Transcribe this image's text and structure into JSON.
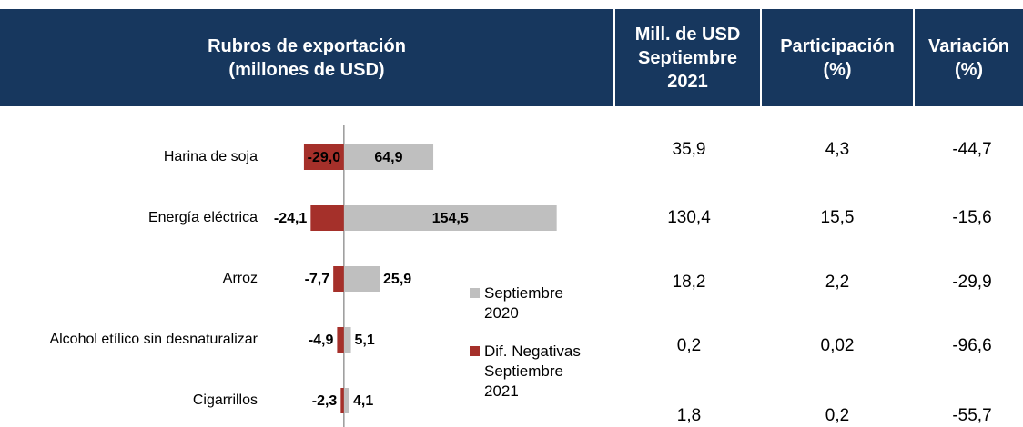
{
  "chart_data": {
    "type": "bar",
    "orientation": "horizontal",
    "title": [
      "Rubros de exportación",
      "(millones de USD)"
    ],
    "categories": [
      "Harina de soja",
      "Energía eléctrica",
      "Arroz",
      "Alcohol etílico sin desnaturalizar",
      "Cigarrillos"
    ],
    "series": [
      {
        "name": "Septiembre 2020",
        "color": "#bfbfbf",
        "values": [
          64.9,
          154.5,
          25.9,
          5.1,
          4.1
        ],
        "value_labels": [
          "64,9",
          "154,5",
          "25,9",
          "5,1",
          "4,1"
        ]
      },
      {
        "name": "Dif. Negativas Septiembre 2021",
        "color": "#a5302a",
        "values": [
          -29.0,
          -24.1,
          -7.7,
          -4.9,
          -2.3
        ],
        "value_labels": [
          "-29,0",
          "-24,1",
          "-7,7",
          "-4,9",
          "-2,3"
        ]
      }
    ],
    "xlim": [
      -60,
      160
    ]
  },
  "table": {
    "columns": [
      [
        "Mill. de USD",
        "Septiembre",
        "2021"
      ],
      [
        "Participación",
        "(%)"
      ],
      [
        "Variación",
        "(%)"
      ]
    ],
    "rows": [
      [
        "35,9",
        "4,3",
        "-44,7"
      ],
      [
        "130,4",
        "15,5",
        "-15,6"
      ],
      [
        "18,2",
        "2,2",
        "-29,9"
      ],
      [
        "0,2",
        "0,02",
        "-96,6"
      ],
      [
        "1,8",
        "0,2",
        "-55,7"
      ]
    ]
  }
}
